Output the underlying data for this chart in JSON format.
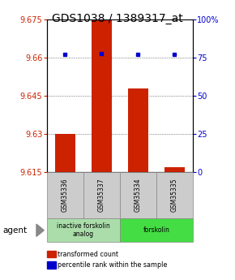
{
  "title": "GDS1038 / 1389317_at",
  "samples": [
    "GSM35336",
    "GSM35337",
    "GSM35334",
    "GSM35335"
  ],
  "bar_values": [
    9.63,
    9.675,
    9.648,
    9.617
  ],
  "percentile_values": [
    77,
    78,
    77,
    77
  ],
  "ylim_left": [
    9.615,
    9.675
  ],
  "ylim_right": [
    0,
    100
  ],
  "yticks_left": [
    9.615,
    9.63,
    9.645,
    9.66,
    9.675
  ],
  "ytick_labels_left": [
    "9.615",
    "9.63",
    "9.645",
    "9.66",
    "9.675"
  ],
  "yticks_right": [
    0,
    25,
    50,
    75,
    100
  ],
  "ytick_labels_right": [
    "0",
    "25",
    "50",
    "75",
    "100%"
  ],
  "bar_color": "#cc2200",
  "dot_color": "#0000cc",
  "bar_bottom": 9.615,
  "groups": [
    {
      "label": "inactive forskolin\nanalog",
      "samples": [
        0,
        1
      ],
      "color": "#aaddaa"
    },
    {
      "label": "forskolin",
      "samples": [
        2,
        3
      ],
      "color": "#44dd44"
    }
  ],
  "legend_items": [
    {
      "color": "#cc2200",
      "label": "transformed count"
    },
    {
      "color": "#0000cc",
      "label": "percentile rank within the sample"
    }
  ],
  "agent_label": "agent",
  "background_color": "#ffffff",
  "plot_bg": "#ffffff",
  "gridline_color": "#555555",
  "title_fontsize": 10,
  "tick_fontsize": 7,
  "bar_width": 0.55
}
